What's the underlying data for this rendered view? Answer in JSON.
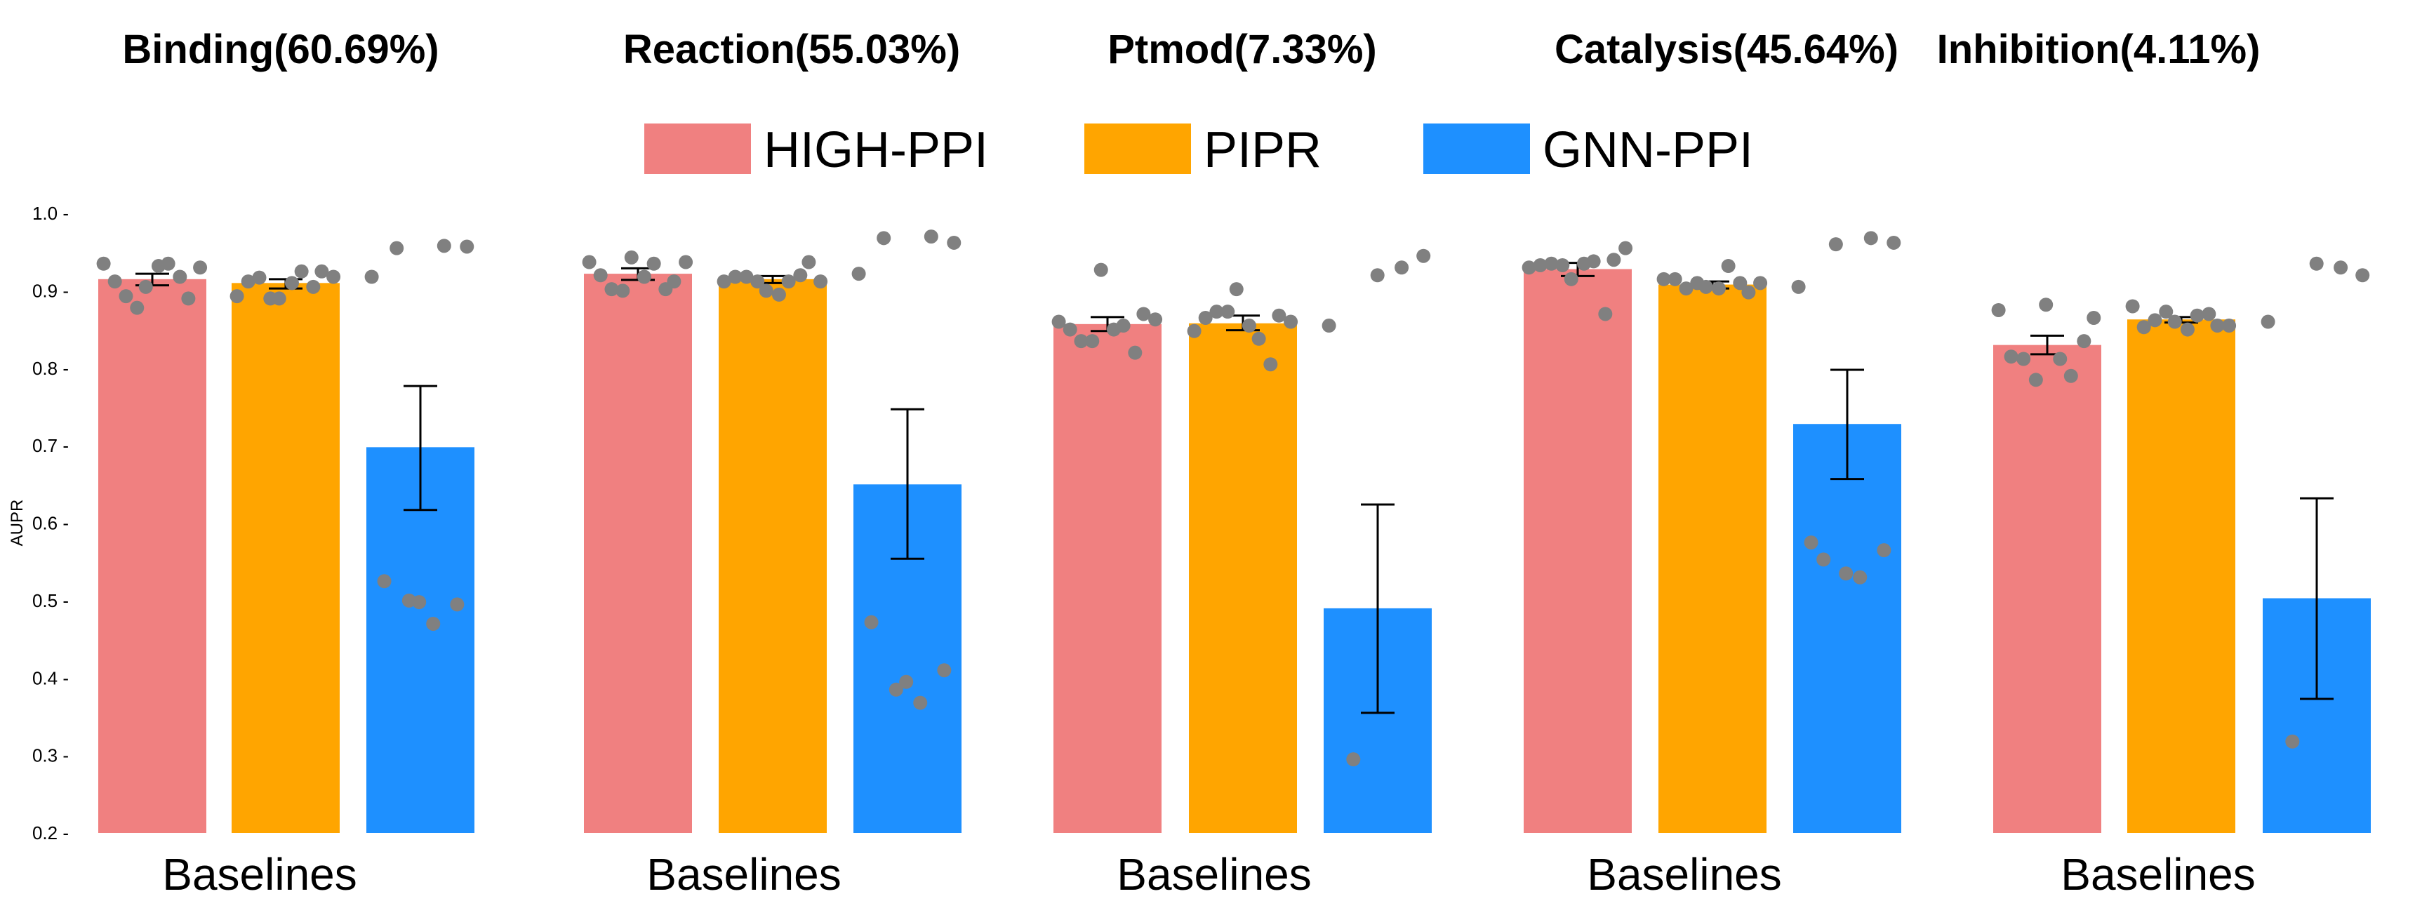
{
  "chart_data": {
    "type": "bar",
    "ylabel": "AUPR",
    "ylim": [
      0.2,
      1.0
    ],
    "yticks": [
      "0.2",
      "0.3",
      "0.4",
      "0.5",
      "0.6",
      "0.7",
      "0.8",
      "0.9",
      "1.0"
    ],
    "legend": {
      "placement": "top-center",
      "entries": [
        {
          "name": "HIGH-PPI",
          "color": "#F08080"
        },
        {
          "name": "PIPR",
          "color": "#FFA500"
        },
        {
          "name": "GNN-PPI",
          "color": "#1E90FF"
        }
      ]
    },
    "point_color": "#808080",
    "error_bar_color": "#000000",
    "panels": [
      {
        "title": "Binding(60.69%)",
        "category": "Baselines",
        "bars": [
          {
            "series": "HIGH-PPI",
            "value": 0.915,
            "err": [
              0.907,
              0.922
            ],
            "points": [
              0.935,
              0.912,
              0.893,
              0.878,
              0.905,
              0.932,
              0.935,
              0.918,
              0.89,
              0.93
            ]
          },
          {
            "series": "PIPR",
            "value": 0.91,
            "err": [
              0.903,
              0.915
            ],
            "points": [
              0.893,
              0.912,
              0.917,
              0.89,
              0.89,
              0.91,
              0.925,
              0.905,
              0.925,
              0.918
            ]
          },
          {
            "series": "GNN-PPI",
            "value": 0.698,
            "err": [
              0.617,
              0.777
            ],
            "points": [
              0.918,
              0.525,
              0.955,
              0.5,
              0.498,
              0.47,
              0.958,
              0.495,
              0.957
            ]
          }
        ]
      },
      {
        "title": "Reaction(55.03%)",
        "category": "Baselines",
        "bars": [
          {
            "series": "HIGH-PPI",
            "value": 0.922,
            "err": [
              0.914,
              0.929
            ],
            "points": [
              0.937,
              0.92,
              0.902,
              0.9,
              0.943,
              0.918,
              0.935,
              0.902,
              0.912,
              0.937
            ]
          },
          {
            "series": "PIPR",
            "value": 0.915,
            "err": [
              0.91,
              0.919
            ],
            "points": [
              0.912,
              0.918,
              0.918,
              0.912,
              0.9,
              0.895,
              0.912,
              0.92,
              0.937,
              0.912
            ]
          },
          {
            "series": "GNN-PPI",
            "value": 0.65,
            "err": [
              0.554,
              0.747
            ],
            "points": [
              0.922,
              0.472,
              0.968,
              0.385,
              0.395,
              0.368,
              0.97,
              0.41,
              0.962
            ]
          }
        ]
      },
      {
        "title": "Ptmod(7.33%)",
        "category": "Baselines",
        "bars": [
          {
            "series": "HIGH-PPI",
            "value": 0.857,
            "err": [
              0.848,
              0.866
            ],
            "points": [
              0.86,
              0.85,
              0.835,
              0.835,
              0.927,
              0.85,
              0.855,
              0.82,
              0.87,
              0.863
            ]
          },
          {
            "series": "PIPR",
            "value": 0.858,
            "err": [
              0.849,
              0.868
            ],
            "points": [
              0.848,
              0.865,
              0.873,
              0.873,
              0.902,
              0.855,
              0.838,
              0.805,
              0.868,
              0.86
            ]
          },
          {
            "series": "GNN-PPI",
            "value": 0.49,
            "err": [
              0.355,
              0.624
            ],
            "points": [
              0.855,
              0.295,
              0.92,
              0.93,
              0.945
            ]
          }
        ]
      },
      {
        "title": "Catalysis(45.64%)",
        "category": "Baselines",
        "bars": [
          {
            "series": "HIGH-PPI",
            "value": 0.928,
            "err": [
              0.919,
              0.936
            ],
            "points": [
              0.93,
              0.933,
              0.935,
              0.933,
              0.915,
              0.935,
              0.938,
              0.87,
              0.94,
              0.955
            ]
          },
          {
            "series": "PIPR",
            "value": 0.908,
            "err": [
              0.903,
              0.912
            ],
            "points": [
              0.915,
              0.915,
              0.903,
              0.91,
              0.905,
              0.903,
              0.932,
              0.91,
              0.898,
              0.91
            ]
          },
          {
            "series": "GNN-PPI",
            "value": 0.728,
            "err": [
              0.657,
              0.798
            ],
            "points": [
              0.905,
              0.575,
              0.553,
              0.96,
              0.535,
              0.53,
              0.968,
              0.565,
              0.962
            ]
          }
        ]
      },
      {
        "title": "Inhibition(4.11%)",
        "category": "Baselines",
        "bars": [
          {
            "series": "HIGH-PPI",
            "value": 0.83,
            "err": [
              0.818,
              0.842
            ],
            "points": [
              0.875,
              0.815,
              0.812,
              0.785,
              0.882,
              0.812,
              0.79,
              0.835,
              0.865
            ]
          },
          {
            "series": "PIPR",
            "value": 0.863,
            "err": [
              0.859,
              0.866
            ],
            "points": [
              0.88,
              0.853,
              0.862,
              0.873,
              0.86,
              0.85,
              0.868,
              0.87,
              0.855,
              0.855
            ]
          },
          {
            "series": "GNN-PPI",
            "value": 0.503,
            "err": [
              0.373,
              0.632
            ],
            "points": [
              0.86,
              0.318,
              0.935,
              0.93,
              0.92
            ]
          }
        ]
      }
    ]
  }
}
